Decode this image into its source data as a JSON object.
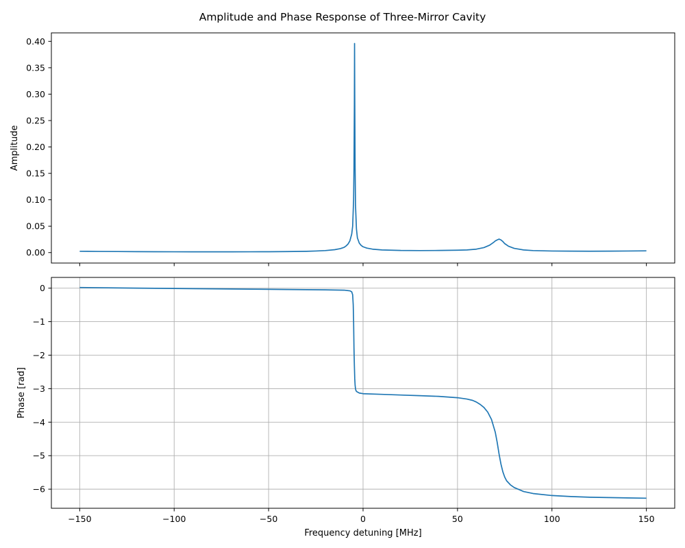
{
  "figure": {
    "title": "Amplitude and Phase Response of Three-Mirror Cavity",
    "line_color": "#1f77b4",
    "grid_color": "#b0b0b0"
  },
  "chart_data": [
    {
      "type": "line",
      "ylabel": "Amplitude",
      "xlabel": "",
      "xlim": [
        -165,
        165
      ],
      "ylim": [
        -0.0198,
        0.416
      ],
      "grid": false,
      "x_ticks": [
        -150,
        -100,
        -50,
        0,
        50,
        100,
        150
      ],
      "x_tick_labels_shown": false,
      "y_ticks": [
        0.0,
        0.05,
        0.1,
        0.15,
        0.2,
        0.25,
        0.3,
        0.35,
        0.4
      ],
      "y_tick_labels": [
        "0.00",
        "0.05",
        "0.10",
        "0.15",
        "0.20",
        "0.25",
        "0.30",
        "0.35",
        "0.40"
      ],
      "series": [
        {
          "x": [
            -150,
            -140,
            -130,
            -120,
            -110,
            -100,
            -90,
            -80,
            -70,
            -60,
            -50,
            -40,
            -30,
            -25,
            -20,
            -15,
            -12,
            -10,
            -9,
            -8,
            -7,
            -6,
            -5.5,
            -5,
            -4.8,
            -4.6,
            -4.5,
            -4.4,
            -4.2,
            -4,
            -3.5,
            -3,
            -2,
            -1,
            0,
            2,
            5,
            10,
            20,
            30,
            40,
            50,
            55,
            60,
            64,
            67,
            69,
            70,
            71,
            72,
            73,
            74,
            75,
            77,
            80,
            85,
            90,
            100,
            110,
            120,
            130,
            140,
            150
          ],
          "y": [
            0.0025,
            0.0022,
            0.002,
            0.0018,
            0.0016,
            0.0015,
            0.0014,
            0.0014,
            0.0014,
            0.0015,
            0.0016,
            0.0019,
            0.0024,
            0.003,
            0.0038,
            0.0055,
            0.0075,
            0.01,
            0.0125,
            0.016,
            0.022,
            0.035,
            0.05,
            0.1,
            0.16,
            0.28,
            0.396,
            0.3,
            0.16,
            0.09,
            0.045,
            0.028,
            0.018,
            0.0135,
            0.011,
            0.0085,
            0.0065,
            0.005,
            0.004,
            0.0038,
            0.004,
            0.0045,
            0.005,
            0.0065,
            0.0095,
            0.014,
            0.019,
            0.022,
            0.024,
            0.0255,
            0.024,
            0.021,
            0.017,
            0.012,
            0.008,
            0.005,
            0.0038,
            0.003,
            0.0027,
            0.0026,
            0.0027,
            0.003,
            0.0033
          ]
        }
      ]
    },
    {
      "type": "line",
      "ylabel": "Phase [rad]",
      "xlabel": "Frequency detuning [MHz]",
      "xlim": [
        -165,
        165
      ],
      "ylim": [
        -6.57,
        0.32
      ],
      "grid": true,
      "x_ticks": [
        -150,
        -100,
        -50,
        0,
        50,
        100,
        150
      ],
      "x_tick_labels": [
        "−150",
        "−100",
        "−50",
        "0",
        "50",
        "100",
        "150"
      ],
      "y_ticks": [
        0,
        -1,
        -2,
        -3,
        -4,
        -5,
        -6
      ],
      "y_tick_labels": [
        "0",
        "−1",
        "−2",
        "−3",
        "−4",
        "−5",
        "−6"
      ],
      "series": [
        {
          "x": [
            -150,
            -120,
            -100,
            -80,
            -60,
            -40,
            -20,
            -10,
            -7,
            -6,
            -5.5,
            -5.2,
            -5,
            -4.8,
            -4.6,
            -4.4,
            -4.2,
            -4,
            -3.8,
            -3.5,
            -3,
            -2,
            0,
            10,
            20,
            30,
            40,
            45,
            50,
            55,
            58,
            60,
            62,
            64,
            66,
            68,
            70,
            71,
            72,
            73,
            74,
            75,
            76,
            78,
            80,
            85,
            90,
            100,
            110,
            120,
            130,
            140,
            150
          ],
          "y": [
            0.02,
            0.0,
            -0.01,
            -0.02,
            -0.03,
            -0.04,
            -0.05,
            -0.06,
            -0.08,
            -0.11,
            -0.2,
            -0.5,
            -1.0,
            -1.8,
            -2.3,
            -2.7,
            -2.9,
            -3.0,
            -3.05,
            -3.08,
            -3.1,
            -3.13,
            -3.15,
            -3.17,
            -3.19,
            -3.21,
            -3.23,
            -3.25,
            -3.27,
            -3.31,
            -3.35,
            -3.4,
            -3.47,
            -3.56,
            -3.7,
            -3.92,
            -4.3,
            -4.6,
            -4.95,
            -5.25,
            -5.48,
            -5.64,
            -5.75,
            -5.87,
            -5.95,
            -6.07,
            -6.13,
            -6.19,
            -6.22,
            -6.24,
            -6.25,
            -6.26,
            -6.27
          ]
        }
      ]
    }
  ]
}
